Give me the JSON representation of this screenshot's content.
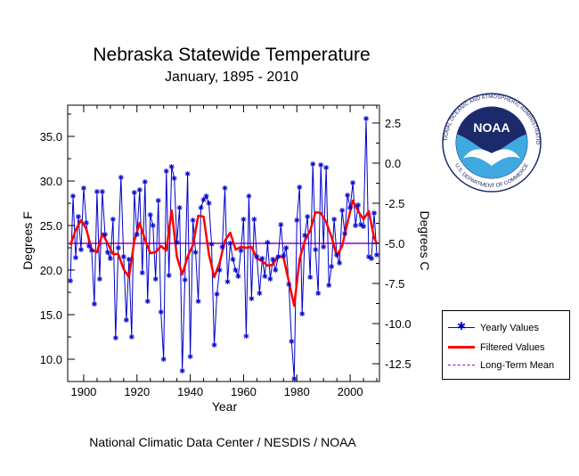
{
  "chart_data": {
    "type": "line",
    "title": "Nebraska Statewide Temperature",
    "subtitle": "January, 1895 - 2010",
    "xlabel": "Year",
    "ylabel": "Degrees F",
    "ylabel_right": "Degrees C",
    "xlim": [
      1894,
      2011
    ],
    "ylim": [
      7.5,
      38.5
    ],
    "x_ticks": [
      1900,
      1920,
      1940,
      1960,
      1980,
      2000
    ],
    "y_ticks": [
      10.0,
      15.0,
      20.0,
      25.0,
      30.0,
      35.0
    ],
    "y_ticks_right": [
      2.5,
      0.0,
      -2.5,
      -5.0,
      -7.5,
      -10.0,
      -12.5
    ],
    "grid": false,
    "legend_position": "bottom-right, outside plot",
    "long_term_mean": 23.0,
    "years": [
      1895,
      1896,
      1897,
      1898,
      1899,
      1900,
      1901,
      1902,
      1903,
      1904,
      1905,
      1906,
      1907,
      1908,
      1909,
      1910,
      1911,
      1912,
      1913,
      1914,
      1915,
      1916,
      1917,
      1918,
      1919,
      1920,
      1921,
      1922,
      1923,
      1924,
      1925,
      1926,
      1927,
      1928,
      1929,
      1930,
      1931,
      1932,
      1933,
      1934,
      1935,
      1936,
      1937,
      1938,
      1939,
      1940,
      1941,
      1942,
      1943,
      1944,
      1945,
      1946,
      1947,
      1948,
      1949,
      1950,
      1951,
      1952,
      1953,
      1954,
      1955,
      1956,
      1957,
      1958,
      1959,
      1960,
      1961,
      1962,
      1963,
      1964,
      1965,
      1966,
      1967,
      1968,
      1969,
      1970,
      1971,
      1972,
      1973,
      1974,
      1975,
      1976,
      1977,
      1978,
      1979,
      1980,
      1981,
      1982,
      1983,
      1984,
      1985,
      1986,
      1987,
      1988,
      1989,
      1990,
      1991,
      1992,
      1993,
      1994,
      1995,
      1996,
      1997,
      1998,
      1999,
      2000,
      2001,
      2002,
      2003,
      2004,
      2005,
      2006,
      2007,
      2008,
      2009,
      2010
    ],
    "series": [
      {
        "name": "Yearly Values",
        "color": "#0000cc",
        "marker": "asterisk",
        "values": [
          18.8,
          28.3,
          21.4,
          26.0,
          22.3,
          29.2,
          25.3,
          22.7,
          22.2,
          16.2,
          28.8,
          19.0,
          28.8,
          24.0,
          22.0,
          21.3,
          25.7,
          12.4,
          22.5,
          30.4,
          21.5,
          14.4,
          21.2,
          12.5,
          28.7,
          24.0,
          29.0,
          19.7,
          29.9,
          16.5,
          26.2,
          25.0,
          19.0,
          27.8,
          15.3,
          10.0,
          31.1,
          19.4,
          31.6,
          30.3,
          23.1,
          27.0,
          8.7,
          18.9,
          30.8,
          10.3,
          25.6,
          22.0,
          16.5,
          27.0,
          27.9,
          28.3,
          27.5,
          22.9,
          11.6,
          17.3,
          20.0,
          22.6,
          29.2,
          18.7,
          23.0,
          21.2,
          20.0,
          19.3,
          22.2,
          25.7,
          12.6,
          28.3,
          16.8,
          25.7,
          21.5,
          17.4,
          21.3,
          19.3,
          23.1,
          19.0,
          21.2,
          20.0,
          21.5,
          25.1,
          21.6,
          22.5,
          18.4,
          12.0,
          7.8,
          25.6,
          29.3,
          15.1,
          23.9,
          26.0,
          19.2,
          31.9,
          22.3,
          17.4,
          31.8,
          22.6,
          31.5,
          18.3,
          20.4,
          25.7,
          21.7,
          20.8,
          26.7,
          24.1,
          28.4,
          27.0,
          29.8,
          25.0,
          27.3,
          25.1,
          24.9,
          37.0,
          21.5,
          21.3,
          26.4,
          21.7
        ]
      },
      {
        "name": "Filtered Values",
        "color": "#ff0000",
        "x": [
          1895,
          1897,
          1899,
          1901,
          1903,
          1905,
          1907,
          1909,
          1911,
          1913,
          1915,
          1917,
          1919,
          1921,
          1923,
          1925,
          1927,
          1929,
          1931,
          1933,
          1935,
          1937,
          1939,
          1941,
          1943,
          1945,
          1947,
          1949,
          1951,
          1953,
          1955,
          1957,
          1959,
          1961,
          1963,
          1965,
          1967,
          1969,
          1971,
          1973,
          1975,
          1977,
          1979,
          1981,
          1983,
          1985,
          1987,
          1989,
          1991,
          1993,
          1995,
          1997,
          1999,
          2001,
          2003,
          2005,
          2007,
          2009,
          2010
        ],
        "values": [
          22.8,
          24.5,
          25.6,
          24.6,
          22.3,
          22.0,
          24.1,
          23.0,
          21.8,
          21.8,
          20.1,
          19.2,
          23.3,
          25.3,
          23.4,
          21.9,
          22.0,
          22.7,
          22.2,
          26.7,
          21.5,
          19.5,
          21.5,
          22.8,
          26.1,
          26.0,
          21.8,
          19.2,
          20.8,
          23.3,
          24.2,
          22.3,
          22.6,
          22.5,
          22.6,
          21.3,
          21.0,
          20.5,
          20.6,
          21.6,
          21.4,
          18.7,
          16.0,
          21.2,
          23.3,
          24.4,
          26.5,
          26.4,
          25.4,
          23.7,
          21.6,
          22.7,
          25.3,
          27.8,
          26.6,
          25.7,
          26.6,
          23.6,
          23.0
        ]
      },
      {
        "name": "Long-Term Mean",
        "color": "#9900cc"
      }
    ]
  },
  "footer": "National Climatic Data Center / NESDIS / NOAA",
  "logo": {
    "center_text": "NOAA",
    "ring_text_top": "NATIONAL OCEANIC AND ATMOSPHERIC ADMINISTRATION",
    "ring_text_bottom": "U.S. DEPARTMENT OF COMMERCE",
    "colors": {
      "navy": "#1c2a6b",
      "sky": "#3fa9e0",
      "white": "#ffffff"
    }
  },
  "legend": {
    "yearly": "Yearly Values",
    "filtered": "Filtered Values",
    "mean": "Long-Term Mean"
  }
}
